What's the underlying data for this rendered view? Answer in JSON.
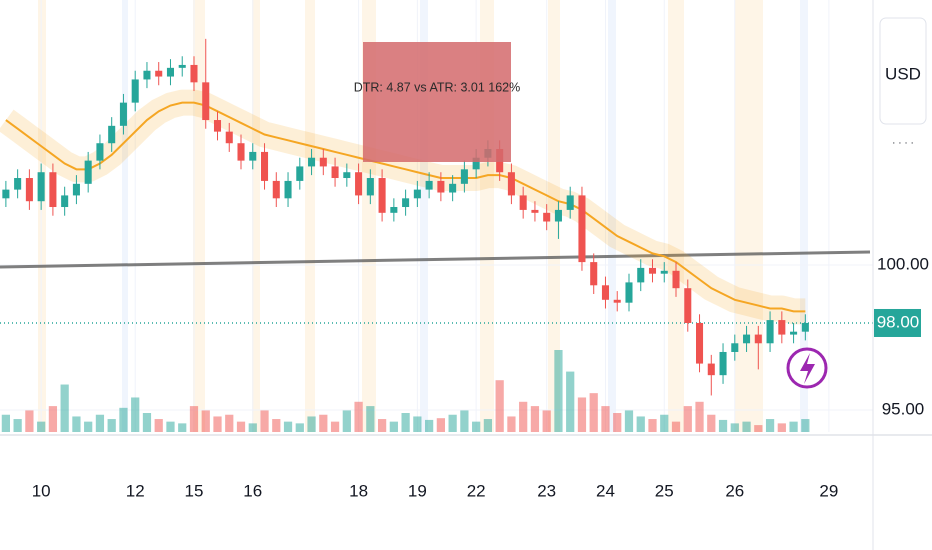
{
  "chart_data": {
    "type": "candlestick",
    "currency": "USD",
    "annotation": "DTR: 4.87 vs ATR: 3.01 162%",
    "xlim": [
      -0.5,
      73.5
    ],
    "ylim": [
      94.24,
      109.14
    ],
    "yticks": [
      {
        "value": 100,
        "label": "100.00"
      },
      {
        "value": 95,
        "label": "95.00"
      }
    ],
    "xticks": [
      {
        "value": 3,
        "label": "10"
      },
      {
        "value": 11,
        "label": "12"
      },
      {
        "value": 16,
        "label": "15"
      },
      {
        "value": 21,
        "label": "16"
      },
      {
        "value": 30,
        "label": "18"
      },
      {
        "value": 35,
        "label": "19"
      },
      {
        "value": 40,
        "label": "22"
      },
      {
        "value": 46,
        "label": "23"
      },
      {
        "value": 51,
        "label": "24"
      },
      {
        "value": 56,
        "label": "25"
      },
      {
        "value": 62,
        "label": "26"
      },
      {
        "value": 70,
        "label": "29"
      }
    ],
    "last_price": {
      "value": 98,
      "label": "98.00"
    },
    "up_color": "#26a69a",
    "down_color": "#ef5350",
    "open": [
      102.3,
      102.6,
      103.0,
      102.2,
      103.2,
      102.0,
      102.4,
      102.8,
      103.6,
      104.2,
      104.8,
      105.6,
      106.4,
      106.7,
      106.5,
      106.8,
      106.9,
      106.3,
      105.0,
      104.6,
      104.2,
      103.6,
      103.9,
      102.9,
      102.3,
      102.9,
      103.4,
      103.7,
      103.4,
      103.0,
      103.2,
      102.4,
      103.0,
      101.8,
      102.0,
      102.3,
      102.6,
      102.9,
      102.5,
      102.8,
      103.3,
      103.7,
      104.0,
      103.2,
      102.4,
      101.9,
      101.8,
      101.5,
      101.9,
      102.4,
      100.1,
      99.3,
      98.8,
      98.7,
      99.4,
      99.9,
      99.7,
      99.8,
      99.2,
      98.0,
      96.6,
      96.2,
      97.0,
      97.3,
      97.6,
      97.3,
      98.1,
      97.6,
      97.7
    ],
    "high": [
      102.9,
      103.3,
      103.3,
      103.5,
      103.5,
      102.7,
      103.1,
      103.9,
      104.5,
      105.1,
      105.9,
      106.7,
      107.0,
      107.0,
      107.1,
      107.2,
      107.2,
      107.8,
      105.3,
      104.9,
      104.5,
      104.2,
      104.2,
      103.2,
      103.2,
      103.7,
      104.0,
      104.0,
      103.7,
      103.5,
      103.5,
      103.3,
      103.3,
      102.3,
      102.6,
      102.9,
      103.2,
      103.2,
      103.1,
      103.6,
      104.0,
      104.3,
      104.3,
      103.5,
      102.7,
      102.2,
      102.1,
      102.2,
      102.7,
      102.7,
      100.4,
      99.6,
      99.1,
      99.7,
      100.2,
      100.2,
      100.1,
      100.1,
      99.5,
      98.3,
      96.9,
      97.3,
      97.6,
      97.9,
      97.9,
      98.4,
      98.4,
      98.0,
      98.3
    ],
    "low": [
      102.0,
      102.3,
      101.9,
      101.9,
      101.7,
      101.7,
      102.1,
      102.5,
      103.3,
      103.9,
      104.5,
      105.3,
      106.1,
      106.2,
      106.2,
      106.5,
      106.0,
      104.7,
      104.3,
      103.9,
      103.3,
      103.3,
      102.6,
      102.0,
      102.0,
      102.6,
      103.1,
      103.1,
      102.7,
      102.7,
      102.1,
      102.1,
      101.5,
      101.5,
      101.7,
      102.0,
      102.3,
      102.2,
      102.2,
      102.5,
      103.0,
      103.4,
      102.9,
      102.1,
      101.6,
      101.5,
      101.2,
      100.9,
      101.6,
      99.8,
      99.0,
      98.5,
      98.4,
      98.4,
      99.1,
      99.4,
      99.4,
      98.9,
      97.7,
      96.3,
      95.5,
      95.9,
      96.7,
      97.0,
      96.4,
      97.0,
      97.3,
      97.3,
      97.4
    ],
    "close": [
      102.6,
      103.0,
      102.2,
      103.2,
      102.0,
      102.4,
      102.8,
      103.6,
      104.2,
      104.8,
      105.6,
      106.4,
      106.7,
      106.5,
      106.8,
      106.9,
      106.3,
      105.0,
      104.6,
      104.2,
      103.6,
      103.9,
      102.9,
      102.3,
      102.9,
      103.4,
      103.7,
      103.4,
      103.0,
      103.2,
      102.4,
      103.0,
      101.8,
      102.0,
      102.3,
      102.6,
      102.9,
      102.5,
      102.8,
      103.3,
      103.7,
      104.0,
      103.2,
      102.4,
      101.9,
      101.8,
      101.5,
      101.9,
      102.4,
      100.1,
      99.3,
      98.8,
      98.7,
      99.4,
      99.9,
      99.7,
      99.8,
      99.2,
      98.0,
      96.6,
      96.2,
      97.0,
      97.3,
      97.6,
      97.3,
      98.1,
      97.6,
      97.7,
      98.0
    ],
    "volume": [
      20,
      15,
      25,
      12,
      30,
      55,
      18,
      12,
      20,
      15,
      28,
      40,
      22,
      15,
      12,
      10,
      30,
      25,
      18,
      20,
      12,
      10,
      25,
      15,
      12,
      10,
      18,
      20,
      12,
      25,
      35,
      30,
      15,
      12,
      22,
      18,
      14,
      16,
      20,
      25,
      12,
      15,
      60,
      18,
      35,
      30,
      25,
      95,
      70,
      40,
      45,
      30,
      22,
      25,
      18,
      15,
      20,
      12,
      30,
      35,
      20,
      14,
      10,
      12,
      8,
      15,
      10,
      12,
      15
    ],
    "ema": {
      "color": "#f5a623",
      "values": [
        105.0,
        104.7,
        104.4,
        104.1,
        103.8,
        103.5,
        103.3,
        103.3,
        103.5,
        103.8,
        104.2,
        104.6,
        105.0,
        105.3,
        105.5,
        105.6,
        105.6,
        105.5,
        105.3,
        105.1,
        104.9,
        104.7,
        104.5,
        104.4,
        104.3,
        104.2,
        104.1,
        104.0,
        103.9,
        103.8,
        103.7,
        103.6,
        103.5,
        103.4,
        103.3,
        103.2,
        103.1,
        103.0,
        103.0,
        103.0,
        103.0,
        103.1,
        103.1,
        103.0,
        102.8,
        102.6,
        102.4,
        102.2,
        102.1,
        101.9,
        101.6,
        101.3,
        101.0,
        100.8,
        100.6,
        100.4,
        100.3,
        100.1,
        99.8,
        99.5,
        99.2,
        99.0,
        98.8,
        98.7,
        98.6,
        98.5,
        98.5,
        98.4,
        98.4
      ]
    },
    "trendline": {
      "color": "#555555",
      "x": [
        -0.5,
        73.5
      ],
      "y": [
        99.93,
        100.45
      ]
    }
  }
}
